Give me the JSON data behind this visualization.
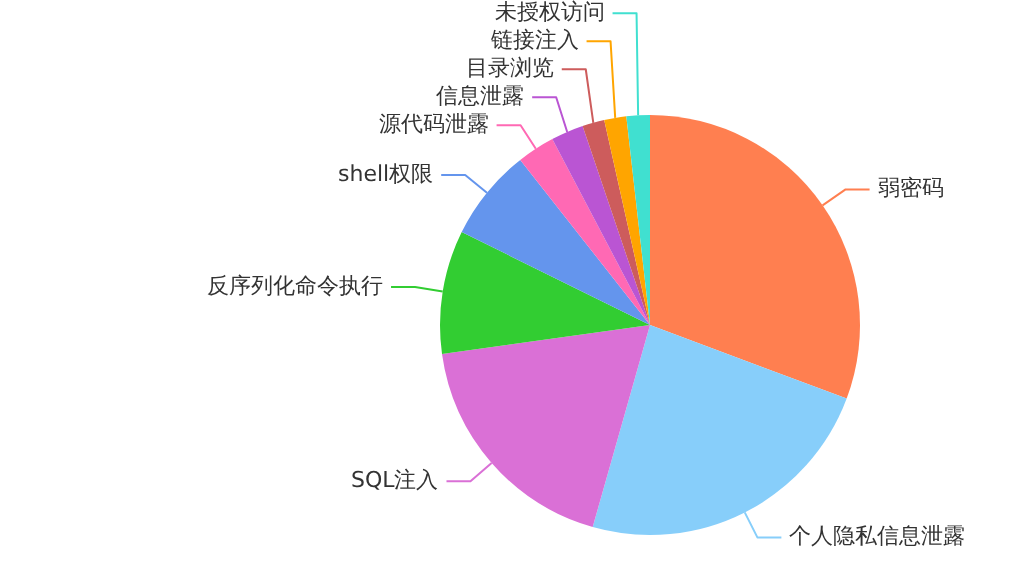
{
  "chart_data": {
    "type": "pie",
    "categories": [
      "弱密码",
      "个人隐私信息泄露",
      "SQL注入",
      "反序列化命令执行",
      "shell权限",
      "源代码泄露",
      "信息泄露",
      "目录浏览",
      "链接注入",
      "未授权访问"
    ],
    "values": [
      30.7,
      23.7,
      18.4,
      9.5,
      7.1,
      2.9,
      2.5,
      1.7,
      1.7,
      1.8
    ],
    "colors": [
      "#ff7f50",
      "#87cefa",
      "#da70d6",
      "#32cd32",
      "#6495ed",
      "#ff69b4",
      "#ba55d3",
      "#cd5c5c",
      "#ffa500",
      "#40e0d0"
    ],
    "legend": false
  }
}
